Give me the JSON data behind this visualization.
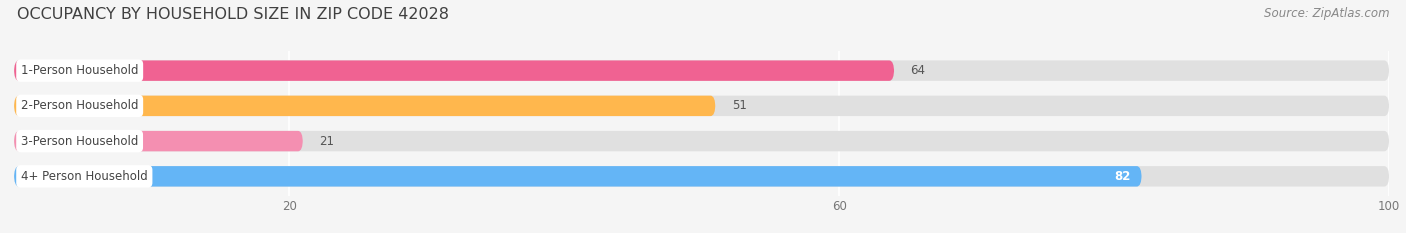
{
  "title": "OCCUPANCY BY HOUSEHOLD SIZE IN ZIP CODE 42028",
  "source": "Source: ZipAtlas.com",
  "categories": [
    "1-Person Household",
    "2-Person Household",
    "3-Person Household",
    "4+ Person Household"
  ],
  "values": [
    64,
    51,
    21,
    82
  ],
  "bar_colors": [
    "#f06292",
    "#ffb74d",
    "#f48fb1",
    "#64b5f6"
  ],
  "label_colors": [
    "#333333",
    "#333333",
    "#333333",
    "#ffffff"
  ],
  "xlim": [
    0,
    100
  ],
  "xticks": [
    20,
    60,
    100
  ],
  "background_color": "#f5f5f5",
  "bar_bg_color": "#e0e0e0",
  "title_fontsize": 11.5,
  "source_fontsize": 8.5,
  "label_fontsize": 8.5,
  "value_fontsize": 8.5,
  "bar_height": 0.58,
  "figsize": [
    14.06,
    2.33
  ],
  "dpi": 100
}
